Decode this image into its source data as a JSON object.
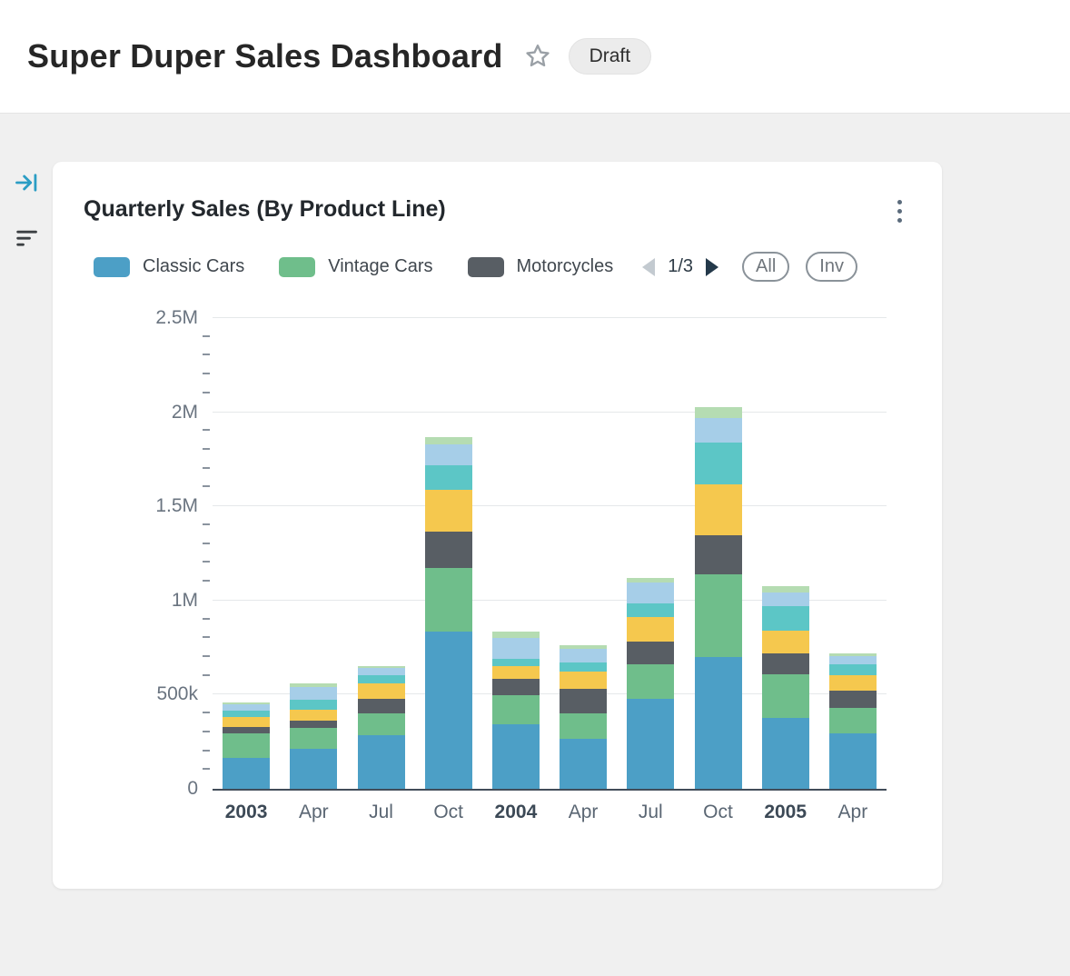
{
  "header": {
    "title": "Super Duper Sales Dashboard",
    "badge": "Draft"
  },
  "card": {
    "title": "Quarterly Sales (By Product Line)",
    "legend_page": "1/3",
    "legend_count": 3,
    "buttons": {
      "all": "All",
      "inv": "Inv"
    }
  },
  "colors": {
    "accent_teal": "#2b9dc4",
    "header_bg": "#ffffff",
    "body_bg": "#f0f0f0",
    "card_bg": "#ffffff"
  },
  "chart_data": {
    "type": "bar",
    "stacked": true,
    "title": "Quarterly Sales (By Product Line)",
    "ylim": [
      0,
      2500000
    ],
    "minor_tick_step": 100000,
    "grid": true,
    "legend_position": "top",
    "yticks": [
      {
        "label": "0",
        "value": 0
      },
      {
        "label": "500k",
        "value": 500000
      },
      {
        "label": "1M",
        "value": 1000000
      },
      {
        "label": "1.5M",
        "value": 1500000
      },
      {
        "label": "2M",
        "value": 2000000
      },
      {
        "label": "2.5M",
        "value": 2500000
      }
    ],
    "categories": [
      {
        "label": "2003",
        "bold": true
      },
      {
        "label": "Apr",
        "bold": false
      },
      {
        "label": "Jul",
        "bold": false
      },
      {
        "label": "Oct",
        "bold": false
      },
      {
        "label": "2004",
        "bold": true
      },
      {
        "label": "Apr",
        "bold": false
      },
      {
        "label": "Jul",
        "bold": false
      },
      {
        "label": "Oct",
        "bold": false
      },
      {
        "label": "2005",
        "bold": true
      },
      {
        "label": "Apr",
        "bold": false
      }
    ],
    "series": [
      {
        "name": "Classic Cars",
        "color": "#4C9FC6",
        "values": [
          165000,
          210000,
          285000,
          830000,
          340000,
          265000,
          475000,
          695000,
          375000,
          295000
        ]
      },
      {
        "name": "Vintage Cars",
        "color": "#6FBE8B",
        "values": [
          130000,
          110000,
          115000,
          340000,
          155000,
          135000,
          185000,
          440000,
          230000,
          135000
        ]
      },
      {
        "name": "Motorcycles",
        "color": "#585E64",
        "values": [
          30000,
          40000,
          75000,
          190000,
          85000,
          130000,
          120000,
          205000,
          110000,
          90000
        ]
      },
      {
        "name": "Unlabeled (yellow)",
        "color": "#F5C84E",
        "values": [
          55000,
          60000,
          85000,
          220000,
          70000,
          90000,
          130000,
          270000,
          120000,
          80000
        ]
      },
      {
        "name": "Unlabeled (teal)",
        "color": "#5CC6C6",
        "values": [
          35000,
          50000,
          40000,
          130000,
          40000,
          50000,
          70000,
          220000,
          130000,
          60000
        ]
      },
      {
        "name": "Unlabeled (light blue)",
        "color": "#A6CEE8",
        "values": [
          30000,
          70000,
          40000,
          110000,
          110000,
          70000,
          110000,
          130000,
          75000,
          40000
        ]
      },
      {
        "name": "Unlabeled (pale green)",
        "color": "#B5DCB2",
        "values": [
          10000,
          20000,
          10000,
          40000,
          30000,
          20000,
          25000,
          60000,
          30000,
          15000
        ]
      }
    ]
  }
}
